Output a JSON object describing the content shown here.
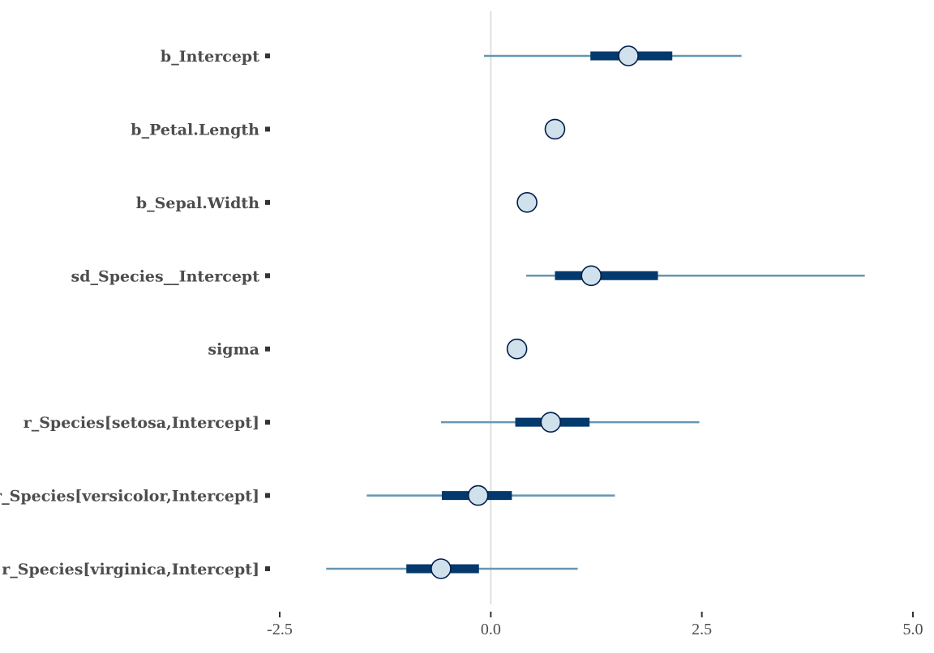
{
  "chart_data": {
    "type": "interval",
    "title": "",
    "xlabel": "",
    "ylabel": "",
    "xlim": [
      -2.5,
      5.0
    ],
    "x_ticks": [
      -2.5,
      0.0,
      2.5,
      5.0
    ],
    "x_tick_labels": [
      "-2.5",
      "0.0",
      "2.5",
      "5.0"
    ],
    "reference_line": 0,
    "grid": false,
    "legend": "none",
    "colors": {
      "outer_interval": "#6497b1",
      "inner_interval": "#03396c",
      "point_fill": "#d1e1ec",
      "point_stroke": "#011f4b",
      "reference_line": "#e0e0e0",
      "text": "#4d4d4d",
      "tick": "#333333"
    },
    "parameters": [
      {
        "label": "b_Intercept",
        "estimate": 1.63,
        "inner": [
          1.18,
          2.15
        ],
        "outer": [
          -0.08,
          2.97
        ]
      },
      {
        "label": "b_Petal.Length",
        "estimate": 0.76,
        "inner": [
          0.73,
          0.79
        ],
        "outer": [
          0.69,
          0.83
        ]
      },
      {
        "label": "b_Sepal.Width",
        "estimate": 0.43,
        "inner": [
          0.39,
          0.47
        ],
        "outer": [
          0.31,
          0.54
        ]
      },
      {
        "label": "sd_Species__Intercept",
        "estimate": 1.19,
        "inner": [
          0.76,
          1.98
        ],
        "outer": [
          0.42,
          4.43
        ]
      },
      {
        "label": "sigma",
        "estimate": 0.31,
        "inner": [
          0.3,
          0.33
        ],
        "outer": [
          0.28,
          0.35
        ]
      },
      {
        "label": "r_Species[setosa,Intercept]",
        "estimate": 0.71,
        "inner": [
          0.29,
          1.17
        ],
        "outer": [
          -0.59,
          2.47
        ]
      },
      {
        "label": "r_Species[versicolor,Intercept]",
        "estimate": -0.15,
        "inner": [
          -0.58,
          0.25
        ],
        "outer": [
          -1.47,
          1.47
        ]
      },
      {
        "label": "r_Species[virginica,Intercept]",
        "estimate": -0.59,
        "inner": [
          -1.0,
          -0.14
        ],
        "outer": [
          -1.95,
          1.03
        ]
      }
    ]
  }
}
